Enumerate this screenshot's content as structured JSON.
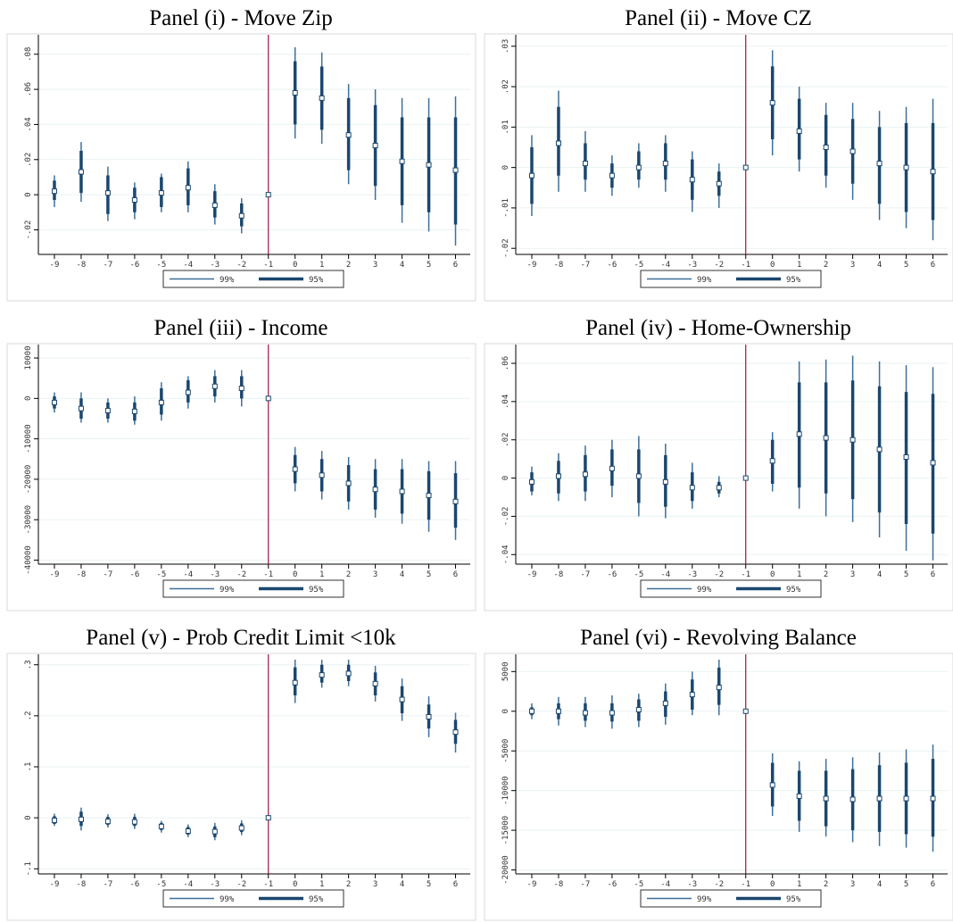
{
  "chart_data": [
    {
      "type": "coefplot",
      "title": "Panel (i) - Move Zip",
      "x": [
        -9,
        -8,
        -7,
        -6,
        -5,
        -4,
        -3,
        -2,
        -1,
        0,
        1,
        2,
        3,
        4,
        5,
        6
      ],
      "values": [
        0.002,
        0.013,
        0.001,
        -0.003,
        0.001,
        0.004,
        -0.006,
        -0.012,
        0,
        0.058,
        0.055,
        0.034,
        0.028,
        0.019,
        0.017,
        0.014
      ],
      "series": [
        {
          "name": "99%",
          "color": "#3d6f99",
          "lower": [
            -0.007,
            -0.004,
            -0.015,
            -0.014,
            -0.01,
            -0.01,
            -0.017,
            -0.022,
            null,
            0.032,
            0.029,
            0.006,
            -0.003,
            -0.016,
            -0.021,
            -0.029
          ],
          "upper": [
            0.011,
            0.03,
            0.016,
            0.007,
            0.012,
            0.019,
            0.006,
            -0.002,
            null,
            0.084,
            0.081,
            0.063,
            0.06,
            0.055,
            0.055,
            0.056
          ]
        },
        {
          "name": "95%",
          "color": "#1a476f",
          "lower": [
            -0.003,
            0.001,
            -0.011,
            -0.01,
            -0.007,
            -0.006,
            -0.013,
            -0.018,
            null,
            0.04,
            0.037,
            0.014,
            0.005,
            -0.006,
            -0.01,
            -0.017
          ],
          "upper": [
            0.008,
            0.025,
            0.011,
            0.004,
            0.01,
            0.015,
            0.002,
            -0.005,
            null,
            0.076,
            0.073,
            0.055,
            0.051,
            0.044,
            0.044,
            0.044
          ]
        }
      ],
      "xlim": [
        -9.6,
        6.55
      ],
      "xticks": [
        -9,
        -8,
        -7,
        -6,
        -5,
        -4,
        -3,
        -2,
        -1,
        0,
        1,
        2,
        3,
        4,
        5,
        6
      ],
      "ylim": [
        -0.034,
        0.088
      ],
      "yticks": [
        {
          "value": -0.02,
          "label": "-.02"
        },
        0,
        {
          "value": 0.02,
          "label": ".02"
        },
        {
          "value": 0.04,
          "label": ".04"
        },
        {
          "value": 0.06,
          "label": ".06"
        },
        {
          "value": 0.08,
          "label": ".08"
        }
      ],
      "vline": -1,
      "vline_color": "#a0153e",
      "grid": true
    },
    {
      "type": "coefplot",
      "title": "Panel (ii) - Move CZ",
      "x": [
        -9,
        -8,
        -7,
        -6,
        -5,
        -4,
        -3,
        -2,
        -1,
        0,
        1,
        2,
        3,
        4,
        5,
        6
      ],
      "values": [
        -0.002,
        0.006,
        0.001,
        -0.002,
        0.0,
        0.001,
        -0.003,
        -0.004,
        0,
        0.016,
        0.009,
        0.005,
        0.004,
        0.001,
        0.0,
        -0.001
      ],
      "series": [
        {
          "name": "99%",
          "color": "#3d6f99",
          "lower": [
            -0.012,
            -0.006,
            -0.006,
            -0.007,
            -0.005,
            -0.006,
            -0.011,
            -0.01,
            null,
            0.003,
            -0.001,
            -0.005,
            -0.008,
            -0.013,
            -0.015,
            -0.018
          ],
          "upper": [
            0.008,
            0.019,
            0.009,
            0.003,
            0.006,
            0.008,
            0.004,
            0.001,
            null,
            0.029,
            0.02,
            0.016,
            0.016,
            0.014,
            0.015,
            0.017
          ]
        },
        {
          "name": "95%",
          "color": "#1a476f",
          "lower": [
            -0.009,
            -0.002,
            -0.003,
            -0.005,
            -0.003,
            -0.003,
            -0.008,
            -0.007,
            null,
            0.007,
            0.002,
            -0.002,
            -0.004,
            -0.009,
            -0.011,
            -0.013
          ],
          "upper": [
            0.005,
            0.015,
            0.006,
            0.001,
            0.004,
            0.006,
            0.002,
            -0.001,
            null,
            0.025,
            0.017,
            0.013,
            0.012,
            0.01,
            0.011,
            0.011
          ]
        }
      ],
      "xlim": [
        -9.6,
        6.55
      ],
      "xticks": [
        -9,
        -8,
        -7,
        -6,
        -5,
        -4,
        -3,
        -2,
        -1,
        0,
        1,
        2,
        3,
        4,
        5,
        6
      ],
      "ylim": [
        -0.0215,
        0.0315
      ],
      "yticks": [
        {
          "value": -0.02,
          "label": "-.02"
        },
        {
          "value": -0.01,
          "label": "-.01"
        },
        0,
        {
          "value": 0.01,
          "label": ".01"
        },
        {
          "value": 0.02,
          "label": ".02"
        },
        {
          "value": 0.03,
          "label": ".03"
        }
      ],
      "vline": -1,
      "vline_color": "#a0153e",
      "grid": true
    },
    {
      "type": "coefplot",
      "title": "Panel (iii) - Income",
      "x": [
        -9,
        -8,
        -7,
        -6,
        -5,
        -4,
        -3,
        -2,
        -1,
        0,
        1,
        2,
        3,
        4,
        5,
        6
      ],
      "values": [
        -1000,
        -2500,
        -3000,
        -3200,
        -1000,
        1500,
        3000,
        2500,
        0,
        -17500,
        -19000,
        -21000,
        -22500,
        -23000,
        -24000,
        -25500
      ],
      "series": [
        {
          "name": "99%",
          "color": "#3d6f99",
          "lower": [
            -3500,
            -6000,
            -6000,
            -6500,
            -5500,
            -2500,
            -1000,
            -2000,
            null,
            -23000,
            -25000,
            -27500,
            -29500,
            -31000,
            -33000,
            -35000
          ],
          "upper": [
            1500,
            1500,
            0,
            500,
            4000,
            5500,
            7000,
            7000,
            null,
            -12000,
            -13000,
            -14500,
            -15000,
            -15000,
            -15500,
            -15500
          ]
        },
        {
          "name": "95%",
          "color": "#1a476f",
          "lower": [
            -2500,
            -5000,
            -5000,
            -5500,
            -4000,
            -1000,
            500,
            0,
            null,
            -21000,
            -23000,
            -25500,
            -27500,
            -28500,
            -30000,
            -32000
          ],
          "upper": [
            500,
            0,
            -1000,
            -1000,
            2500,
            4500,
            5500,
            5500,
            null,
            -14000,
            -15000,
            -16500,
            -17500,
            -17500,
            -18000,
            -18500
          ]
        }
      ],
      "xlim": [
        -9.6,
        6.55
      ],
      "xticks": [
        -9,
        -8,
        -7,
        -6,
        -5,
        -4,
        -3,
        -2,
        -1,
        0,
        1,
        2,
        3,
        4,
        5,
        6
      ],
      "ylim": [
        -41000,
        12000
      ],
      "yticks": [
        -40000,
        -30000,
        -20000,
        -10000,
        0,
        10000
      ],
      "vline": -1,
      "vline_color": "#a0153e",
      "grid": true
    },
    {
      "type": "coefplot",
      "title": "Panel (iv) - Home-Ownership",
      "x": [
        -9,
        -8,
        -7,
        -6,
        -5,
        -4,
        -3,
        -2,
        -1,
        0,
        1,
        2,
        3,
        4,
        5,
        6
      ],
      "values": [
        -0.002,
        0.001,
        0.002,
        0.005,
        0.001,
        -0.002,
        -0.005,
        -0.005,
        0,
        0.009,
        0.023,
        0.021,
        0.02,
        0.015,
        0.011,
        0.008
      ],
      "series": [
        {
          "name": "99%",
          "color": "#3d6f99",
          "lower": [
            -0.009,
            -0.012,
            -0.012,
            -0.01,
            -0.02,
            -0.021,
            -0.016,
            -0.01,
            null,
            -0.007,
            -0.016,
            -0.02,
            -0.023,
            -0.031,
            -0.038,
            -0.043
          ],
          "upper": [
            0.006,
            0.013,
            0.017,
            0.02,
            0.022,
            0.018,
            0.008,
            0.001,
            null,
            0.024,
            0.061,
            0.062,
            0.064,
            0.061,
            0.059,
            0.058
          ]
        },
        {
          "name": "95%",
          "color": "#1a476f",
          "lower": [
            -0.007,
            -0.008,
            -0.007,
            -0.004,
            -0.013,
            -0.015,
            -0.012,
            -0.008,
            null,
            -0.003,
            -0.005,
            -0.008,
            -0.011,
            -0.018,
            -0.024,
            -0.029
          ],
          "upper": [
            0.003,
            0.009,
            0.012,
            0.015,
            0.015,
            0.012,
            0.003,
            -0.002,
            null,
            0.02,
            0.05,
            0.05,
            0.051,
            0.048,
            0.045,
            0.044
          ]
        }
      ],
      "xlim": [
        -9.6,
        6.55
      ],
      "xticks": [
        -9,
        -8,
        -7,
        -6,
        -5,
        -4,
        -3,
        -2,
        -1,
        0,
        1,
        2,
        3,
        4,
        5,
        6
      ],
      "ylim": [
        -0.045,
        0.067
      ],
      "yticks": [
        {
          "value": -0.04,
          "label": "-.04"
        },
        {
          "value": -0.02,
          "label": "-.02"
        },
        0,
        {
          "value": 0.02,
          "label": ".02"
        },
        {
          "value": 0.04,
          "label": ".04"
        },
        {
          "value": 0.06,
          "label": ".06"
        }
      ],
      "vline": -1,
      "vline_color": "#a0153e",
      "grid": true
    },
    {
      "type": "coefplot",
      "title": "Panel (v) - Prob Credit Limit <10k",
      "x": [
        -9,
        -8,
        -7,
        -6,
        -5,
        -4,
        -3,
        -2,
        -1,
        0,
        1,
        2,
        3,
        4,
        5,
        6
      ],
      "values": [
        -0.005,
        -0.003,
        -0.007,
        -0.008,
        -0.017,
        -0.026,
        -0.027,
        -0.02,
        0,
        0.265,
        0.28,
        0.283,
        0.263,
        0.232,
        0.198,
        0.168
      ],
      "series": [
        {
          "name": "99%",
          "color": "#3d6f99",
          "lower": [
            -0.016,
            -0.025,
            -0.019,
            -0.022,
            -0.029,
            -0.038,
            -0.044,
            -0.034,
            null,
            0.225,
            0.255,
            0.258,
            0.228,
            0.19,
            0.158,
            0.128
          ],
          "upper": [
            0.008,
            0.02,
            0.007,
            0.008,
            -0.006,
            -0.013,
            -0.01,
            -0.005,
            null,
            0.31,
            0.31,
            0.31,
            0.298,
            0.273,
            0.238,
            0.206
          ]
        },
        {
          "name": "95%",
          "color": "#1a476f",
          "lower": [
            -0.012,
            -0.016,
            -0.014,
            -0.016,
            -0.024,
            -0.033,
            -0.038,
            -0.028,
            null,
            0.24,
            0.265,
            0.268,
            0.24,
            0.205,
            0.175,
            0.145
          ],
          "upper": [
            0.003,
            0.012,
            0.002,
            0.002,
            -0.01,
            -0.018,
            -0.017,
            -0.011,
            null,
            0.295,
            0.3,
            0.3,
            0.285,
            0.258,
            0.222,
            0.192
          ]
        }
      ],
      "xlim": [
        -9.6,
        6.55
      ],
      "xticks": [
        -9,
        -8,
        -7,
        -6,
        -5,
        -4,
        -3,
        -2,
        -1,
        0,
        1,
        2,
        3,
        4,
        5,
        6
      ],
      "ylim": [
        -0.11,
        0.31
      ],
      "yticks": [
        {
          "value": -0.1,
          "label": "-.1"
        },
        0,
        {
          "value": 0.1,
          "label": ".1"
        },
        {
          "value": 0.2,
          "label": ".2"
        },
        {
          "value": 0.3,
          "label": ".3"
        }
      ],
      "vline": -1,
      "vline_color": "#a0153e",
      "grid": true
    },
    {
      "type": "coefplot",
      "title": "Panel (vi) - Revolving Balance",
      "x": [
        -9,
        -8,
        -7,
        -6,
        -5,
        -4,
        -3,
        -2,
        -1,
        0,
        1,
        2,
        3,
        4,
        5,
        6
      ],
      "values": [
        0,
        0,
        -200,
        -200,
        200,
        1000,
        2100,
        3000,
        0,
        -9300,
        -10700,
        -11000,
        -11100,
        -11000,
        -11000,
        -11000
      ],
      "series": [
        {
          "name": "99%",
          "color": "#3d6f99",
          "lower": [
            -1000,
            -1800,
            -2000,
            -2200,
            -2000,
            -1700,
            -500,
            -500,
            null,
            -13200,
            -15200,
            -15800,
            -16500,
            -17000,
            -17200,
            -17700
          ],
          "upper": [
            1000,
            1800,
            1800,
            2000,
            2200,
            3500,
            5000,
            6500,
            null,
            -5300,
            -6300,
            -6000,
            -5800,
            -5200,
            -4800,
            -4200
          ]
        },
        {
          "name": "95%",
          "color": "#1a476f",
          "lower": [
            -500,
            -1000,
            -1200,
            -1300,
            -1200,
            -700,
            200,
            800,
            null,
            -12000,
            -13800,
            -14500,
            -15000,
            -15200,
            -15500,
            -15800
          ],
          "upper": [
            500,
            1000,
            1000,
            1000,
            1500,
            2500,
            4000,
            5500,
            null,
            -6500,
            -7500,
            -7500,
            -7300,
            -6800,
            -6500,
            -6000
          ]
        }
      ],
      "xlim": [
        -9.6,
        6.55
      ],
      "xticks": [
        -9,
        -8,
        -7,
        -6,
        -5,
        -4,
        -3,
        -2,
        -1,
        0,
        1,
        2,
        3,
        4,
        5,
        6
      ],
      "ylim": [
        -20500,
        6500
      ],
      "yticks": [
        -20000,
        -15000,
        -10000,
        -5000,
        0,
        5000
      ],
      "vline": -1,
      "vline_color": "#a0153e",
      "grid": true
    }
  ]
}
